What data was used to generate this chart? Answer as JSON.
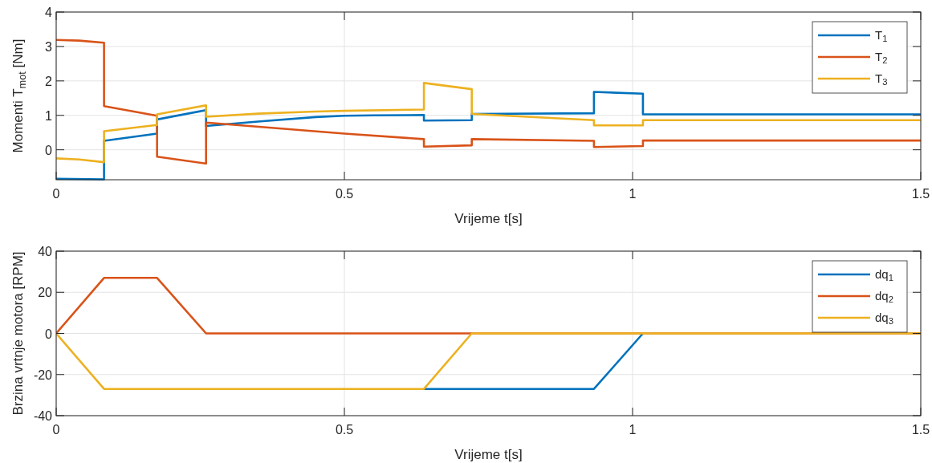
{
  "chart_data": [
    {
      "type": "line",
      "xlabel": "Vrijeme t[s]",
      "ylabel": "Momenti T$_{mot}$ [Nm]",
      "xlim": [
        0,
        1.5
      ],
      "ylim": [
        -0.87,
        4
      ],
      "xticks": [
        0,
        0.5,
        1,
        1.5
      ],
      "yticks": [
        0,
        1,
        2,
        3,
        4
      ],
      "grid": true,
      "legend": "top right",
      "line_style": "solid",
      "series": [
        {
          "name": "T$_{1}$",
          "color": "#0072bd",
          "x": [
            0,
            0.083,
            0.083,
            0.175,
            0.175,
            0.26,
            0.26,
            0.35,
            0.45,
            0.5,
            0.55,
            0.638,
            0.638,
            0.721,
            0.721,
            0.933,
            0.933,
            1.018,
            1.018,
            1.5
          ],
          "values": [
            -0.84,
            -0.86,
            0.26,
            0.47,
            0.88,
            1.15,
            0.69,
            0.82,
            0.95,
            0.99,
            1.0,
            1.01,
            0.85,
            0.86,
            1.04,
            1.06,
            1.68,
            1.63,
            1.03,
            1.03
          ]
        },
        {
          "name": "T$_{2}$",
          "color": "#d95319",
          "x": [
            0,
            0.04,
            0.083,
            0.083,
            0.175,
            0.175,
            0.26,
            0.26,
            0.5,
            0.638,
            0.638,
            0.721,
            0.721,
            0.933,
            0.933,
            1.018,
            1.018,
            1.5
          ],
          "values": [
            3.19,
            3.17,
            3.11,
            1.27,
            0.99,
            -0.2,
            -0.4,
            0.79,
            0.47,
            0.31,
            0.09,
            0.13,
            0.31,
            0.26,
            0.08,
            0.11,
            0.27,
            0.27
          ]
        },
        {
          "name": "T$_{3}$",
          "color": "#edb120",
          "x": [
            0,
            0.04,
            0.083,
            0.083,
            0.175,
            0.175,
            0.26,
            0.26,
            0.35,
            0.45,
            0.5,
            0.638,
            0.638,
            0.721,
            0.721,
            0.933,
            0.933,
            1.018,
            1.018,
            1.5
          ],
          "values": [
            -0.25,
            -0.28,
            -0.36,
            0.54,
            0.72,
            1.03,
            1.29,
            0.96,
            1.05,
            1.11,
            1.13,
            1.17,
            1.94,
            1.76,
            1.04,
            0.86,
            0.71,
            0.71,
            0.86,
            0.86
          ]
        }
      ]
    },
    {
      "type": "line",
      "xlabel": "Vrijeme t[s]",
      "ylabel": "Brzina vrtnje motora [RPM]",
      "xlim": [
        0,
        1.5
      ],
      "ylim": [
        -40,
        40
      ],
      "xticks": [
        0,
        0.5,
        1,
        1.5
      ],
      "yticks": [
        -40,
        -20,
        0,
        20,
        40
      ],
      "grid": true,
      "legend": "top right",
      "line_style": "solid",
      "series": [
        {
          "name": "dq$_{1}$",
          "color": "#0072bd",
          "x": [
            0.638,
            0.933,
            1.018
          ],
          "values": [
            -27,
            -27,
            0
          ]
        },
        {
          "name": "dq$_{2}$",
          "color": "#d95319",
          "x": [
            0,
            0.083,
            0.175,
            0.26,
            1.5
          ],
          "values": [
            0,
            27,
            27,
            0,
            0
          ]
        },
        {
          "name": "dq$_{3}$",
          "color": "#edb120",
          "x": [
            0,
            0.083,
            0.638,
            0.721,
            1.5
          ],
          "values": [
            0,
            -27,
            -27,
            0,
            0
          ]
        }
      ]
    }
  ]
}
